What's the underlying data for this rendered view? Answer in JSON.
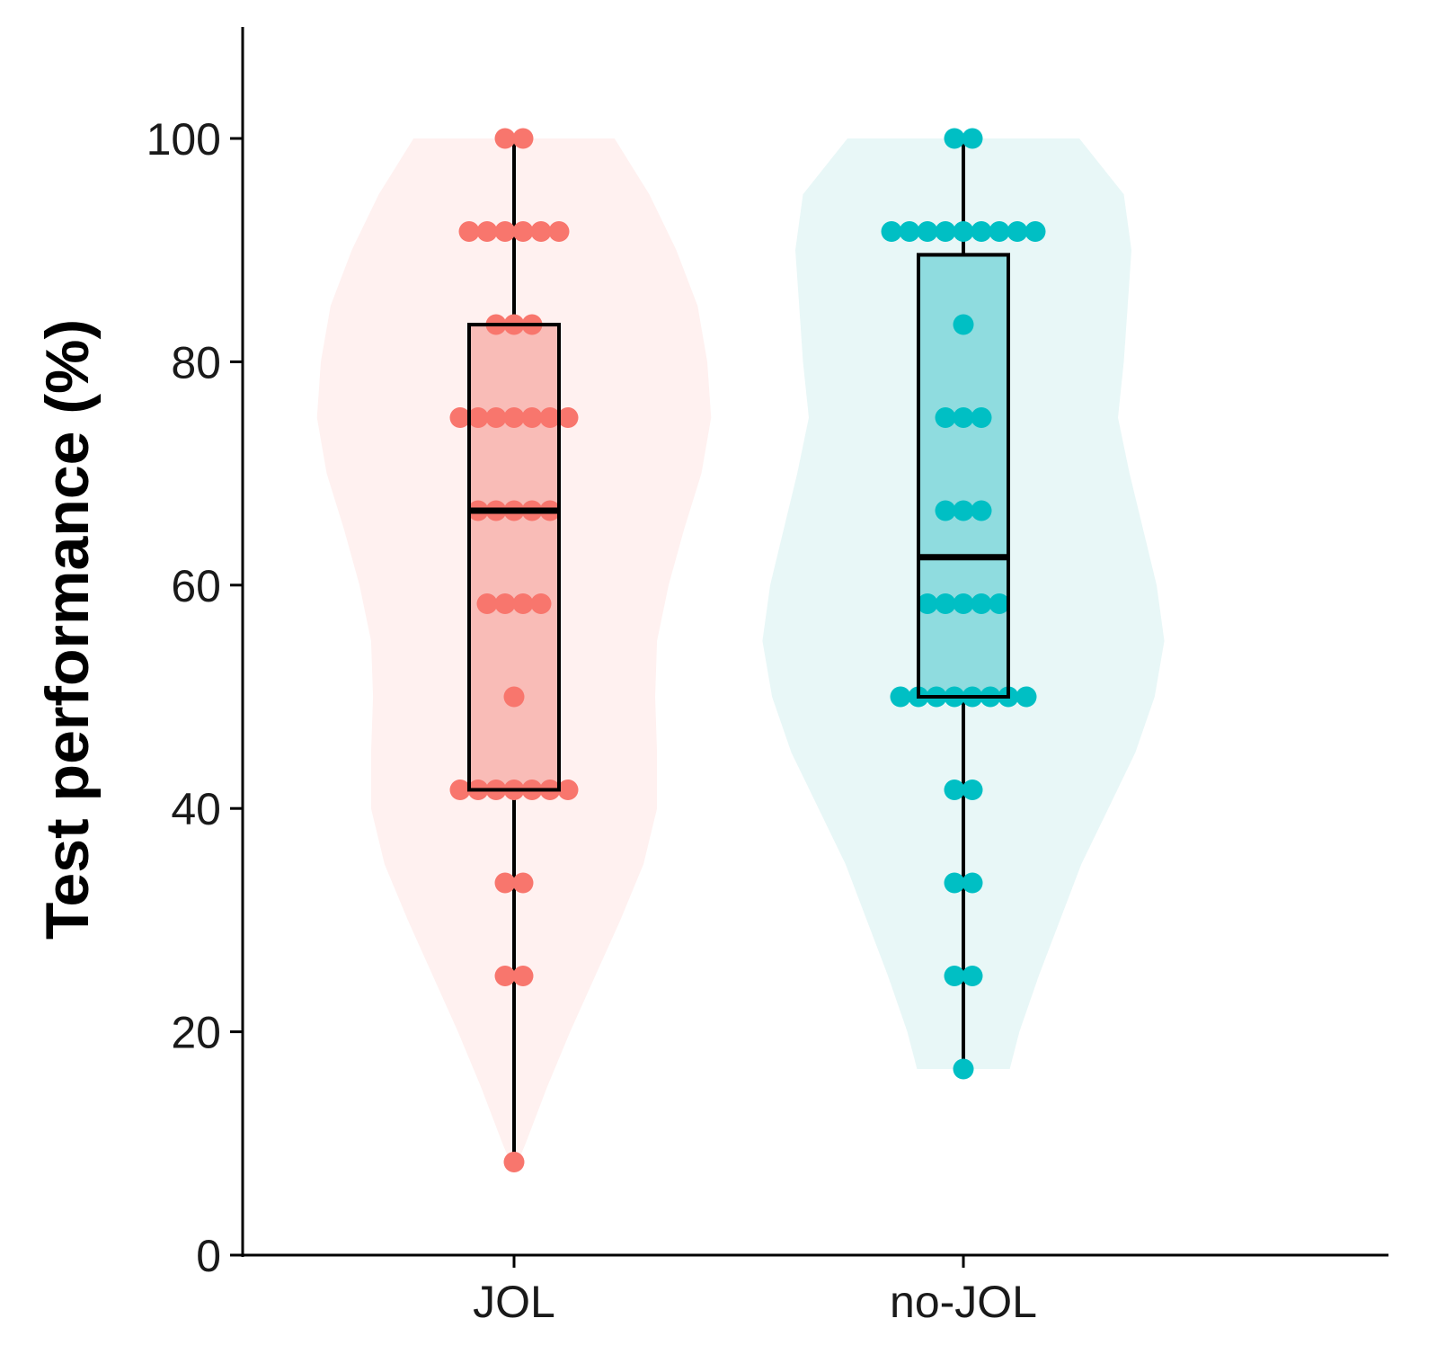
{
  "chart_data": {
    "type": "violin-box-dot",
    "title": "",
    "xlabel": "",
    "ylabel": "Test performance (%)",
    "ylim": [
      0,
      110
    ],
    "yticks": [
      0,
      20,
      40,
      60,
      80,
      100
    ],
    "grid": false,
    "legend": "none",
    "categories": [
      "JOL",
      "no-JOL"
    ],
    "colors": {
      "JOL": "#f8766d",
      "JOL_box_fill": "#f9bcb7",
      "JOL_violin_fill": "#fff1f0",
      "no-JOL": "#00bfc4",
      "no-JOL_box_fill": "#8fdcdf",
      "no-JOL_violin_fill": "#e8f7f7",
      "axis": "#000000"
    },
    "series": [
      {
        "name": "JOL",
        "box": {
          "min": 8.33,
          "q1": 41.67,
          "median": 66.67,
          "q3": 83.33,
          "max": 100
        },
        "points": [
          {
            "y": 100,
            "n": 2
          },
          {
            "y": 91.67,
            "n": 6
          },
          {
            "y": 83.33,
            "n": 3
          },
          {
            "y": 75,
            "n": 7
          },
          {
            "y": 66.67,
            "n": 5
          },
          {
            "y": 58.33,
            "n": 4
          },
          {
            "y": 50,
            "n": 1
          },
          {
            "y": 41.67,
            "n": 7
          },
          {
            "y": 33.33,
            "n": 2
          },
          {
            "y": 25,
            "n": 2
          },
          {
            "y": 8.33,
            "n": 1
          }
        ],
        "violin": [
          [
            100,
            0.52
          ],
          [
            95,
            0.7
          ],
          [
            90,
            0.84
          ],
          [
            85,
            0.95
          ],
          [
            80,
            1.0
          ],
          [
            75,
            1.02
          ],
          [
            70,
            0.97
          ],
          [
            65,
            0.88
          ],
          [
            60,
            0.8
          ],
          [
            55,
            0.74
          ],
          [
            50,
            0.73
          ],
          [
            45,
            0.74
          ],
          [
            40,
            0.74
          ],
          [
            35,
            0.67
          ],
          [
            30,
            0.55
          ],
          [
            25,
            0.42
          ],
          [
            20,
            0.29
          ],
          [
            15,
            0.17
          ],
          [
            10,
            0.06
          ],
          [
            8.33,
            0.02
          ]
        ]
      },
      {
        "name": "no-JOL",
        "box": {
          "min": 16.67,
          "q1": 50,
          "median": 62.5,
          "q3": 89.58,
          "max": 100
        },
        "points": [
          {
            "y": 100,
            "n": 2
          },
          {
            "y": 91.67,
            "n": 9
          },
          {
            "y": 83.33,
            "n": 1
          },
          {
            "y": 75,
            "n": 3
          },
          {
            "y": 66.67,
            "n": 3
          },
          {
            "y": 58.33,
            "n": 5
          },
          {
            "y": 50,
            "n": 8
          },
          {
            "y": 41.67,
            "n": 2
          },
          {
            "y": 33.33,
            "n": 2
          },
          {
            "y": 25,
            "n": 2
          },
          {
            "y": 16.67,
            "n": 1
          }
        ],
        "violin": [
          [
            100,
            0.6
          ],
          [
            95,
            0.83
          ],
          [
            90,
            0.87
          ],
          [
            85,
            0.85
          ],
          [
            80,
            0.83
          ],
          [
            75,
            0.8
          ],
          [
            70,
            0.86
          ],
          [
            65,
            0.93
          ],
          [
            60,
            1.0
          ],
          [
            55,
            1.04
          ],
          [
            50,
            0.99
          ],
          [
            45,
            0.89
          ],
          [
            40,
            0.75
          ],
          [
            35,
            0.61
          ],
          [
            30,
            0.5
          ],
          [
            25,
            0.39
          ],
          [
            20,
            0.29
          ],
          [
            16.67,
            0.24
          ]
        ]
      }
    ]
  }
}
